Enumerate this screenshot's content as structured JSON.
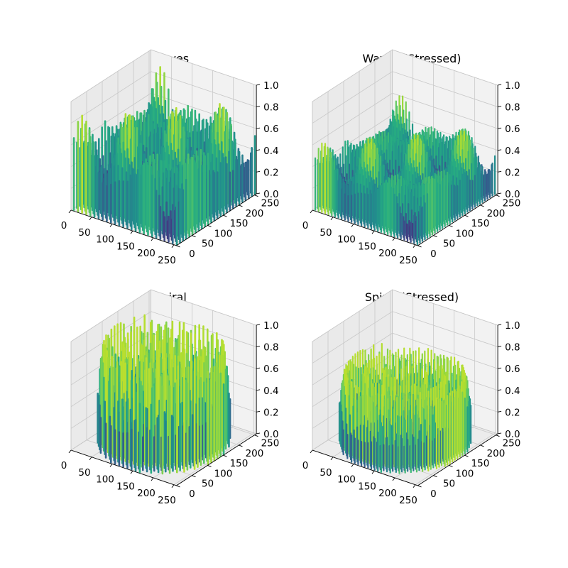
{
  "chart_data": [
    {
      "type": "bar3d",
      "title": "Waves",
      "surface": "waves",
      "stressed": false,
      "xlim": [
        0,
        256
      ],
      "ylim": [
        0,
        256
      ],
      "zlim": [
        0,
        1
      ],
      "xticks": [
        0,
        50,
        100,
        150,
        200,
        250
      ],
      "yticks": [
        0,
        50,
        100,
        150,
        200,
        250
      ],
      "zticks": [
        0.0,
        0.2,
        0.4,
        0.6,
        0.8,
        1.0
      ],
      "xticklabels": [
        "0",
        "50",
        "100",
        "150",
        "200",
        "250"
      ],
      "yticklabels": [
        "0",
        "50",
        "100",
        "150",
        "200",
        "250"
      ],
      "zticklabels": [
        "0.0",
        "0.2",
        "0.4",
        "0.6",
        "0.8",
        "1.0"
      ],
      "colormap": "viridis",
      "grid": true
    },
    {
      "type": "bar3d",
      "title": "Waves (Stressed)",
      "surface": "waves",
      "stressed": true,
      "xlim": [
        0,
        256
      ],
      "ylim": [
        0,
        256
      ],
      "zlim": [
        0,
        1
      ],
      "xticks": [
        0,
        50,
        100,
        150,
        200,
        250
      ],
      "yticks": [
        0,
        50,
        100,
        150,
        200,
        250
      ],
      "zticks": [
        0.0,
        0.2,
        0.4,
        0.6,
        0.8,
        1.0
      ],
      "xticklabels": [
        "0",
        "50",
        "100",
        "150",
        "200",
        "250"
      ],
      "yticklabels": [
        "0",
        "50",
        "100",
        "150",
        "200",
        "250"
      ],
      "zticklabels": [
        "0.0",
        "0.2",
        "0.4",
        "0.6",
        "0.8",
        "1.0"
      ],
      "colormap": "viridis",
      "grid": true
    },
    {
      "type": "bar3d",
      "title": "Spiral",
      "surface": "spiral",
      "stressed": false,
      "xlim": [
        0,
        256
      ],
      "ylim": [
        0,
        256
      ],
      "zlim": [
        0,
        1
      ],
      "xticks": [
        0,
        50,
        100,
        150,
        200,
        250
      ],
      "yticks": [
        0,
        50,
        100,
        150,
        200,
        250
      ],
      "zticks": [
        0.0,
        0.2,
        0.4,
        0.6,
        0.8,
        1.0
      ],
      "xticklabels": [
        "0",
        "50",
        "100",
        "150",
        "200",
        "250"
      ],
      "yticklabels": [
        "0",
        "50",
        "100",
        "150",
        "200",
        "250"
      ],
      "zticklabels": [
        "0.0",
        "0.2",
        "0.4",
        "0.6",
        "0.8",
        "1.0"
      ],
      "colormap": "viridis",
      "grid": true
    },
    {
      "type": "bar3d",
      "title": "Spiral (Stressed)",
      "surface": "spiral",
      "stressed": true,
      "xlim": [
        0,
        256
      ],
      "ylim": [
        0,
        256
      ],
      "zlim": [
        0,
        1
      ],
      "xticks": [
        0,
        50,
        100,
        150,
        200,
        250
      ],
      "yticks": [
        0,
        50,
        100,
        150,
        200,
        250
      ],
      "zticks": [
        0.0,
        0.2,
        0.4,
        0.6,
        0.8,
        1.0
      ],
      "xticklabels": [
        "0",
        "50",
        "100",
        "150",
        "200",
        "250"
      ],
      "yticklabels": [
        "0",
        "50",
        "100",
        "150",
        "200",
        "250"
      ],
      "zticklabels": [
        "0.0",
        "0.2",
        "0.4",
        "0.6",
        "0.8",
        "1.0"
      ],
      "colormap": "viridis",
      "grid": true
    }
  ]
}
